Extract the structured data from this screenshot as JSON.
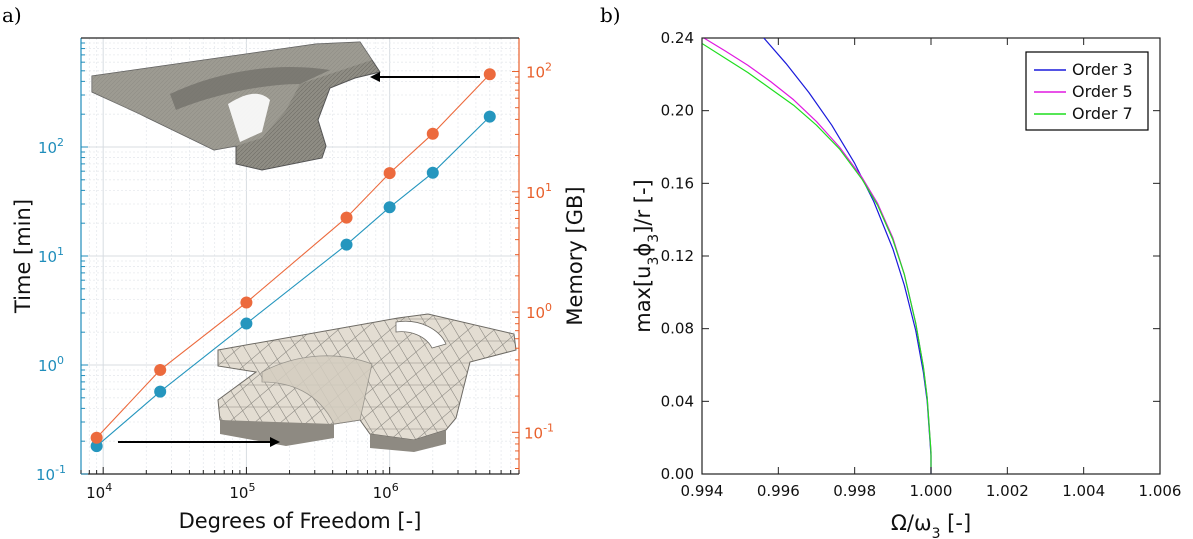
{
  "panels": {
    "a_label": "a)",
    "b_label": "b)"
  },
  "chart_data": [
    {
      "type": "scatter",
      "panel": "a",
      "xlabel": "Degrees of Freedom [-]",
      "ylabel_left": "Time [min]",
      "ylabel_right": "Memory [GB]",
      "xscale": "log",
      "yscale": "log",
      "xlim": [
        7000,
        8000000
      ],
      "ylim_left": [
        0.1,
        1000
      ],
      "ylim_right": [
        0.045,
        190
      ],
      "grid": true,
      "x_ticks": [
        {
          "value": 10000,
          "base": "10",
          "exp": "4"
        },
        {
          "value": 100000,
          "base": "10",
          "exp": "5"
        },
        {
          "value": 1000000,
          "base": "10",
          "exp": "6"
        }
      ],
      "y_ticks_left": [
        {
          "value": 0.1,
          "base": "10",
          "exp": "-1"
        },
        {
          "value": 1,
          "base": "10",
          "exp": "0"
        },
        {
          "value": 10,
          "base": "10",
          "exp": "1"
        },
        {
          "value": 100,
          "base": "10",
          "exp": "2"
        }
      ],
      "y_ticks_right": [
        {
          "value": 0.1,
          "base": "10",
          "exp": "-1"
        },
        {
          "value": 1,
          "base": "10",
          "exp": "0"
        },
        {
          "value": 10,
          "base": "10",
          "exp": "1"
        },
        {
          "value": 100,
          "base": "10",
          "exp": "2"
        }
      ],
      "colors": {
        "time": "#2596be",
        "memory": "#ec6a3d"
      },
      "series": [
        {
          "axis": "left",
          "x": [
            9000,
            25000,
            100000,
            500000,
            1000000,
            2000000,
            5000000
          ],
          "y": [
            0.18,
            0.57,
            2.4,
            12.7,
            28,
            58,
            190
          ]
        },
        {
          "axis": "right",
          "x": [
            9000,
            25000,
            100000,
            500000,
            1000000,
            2000000,
            5000000
          ],
          "y": [
            0.09,
            0.33,
            1.2,
            6.1,
            14.3,
            30.4,
            95
          ]
        }
      ]
    },
    {
      "type": "line",
      "panel": "b",
      "xlabel": "Ω/ω",
      "xlabel_sub": "3",
      "xlabel_tail": " [-]",
      "ylabel_pre": "max[u",
      "ylabel_sub1": "3",
      "ylabel_mid": "ϕ",
      "ylabel_sub2": "3",
      "ylabel_post": "]/r [-]",
      "xlim": [
        0.994,
        1.006
      ],
      "ylim": [
        0,
        0.24
      ],
      "x_ticks": [
        "0.994",
        "0.996",
        "0.998",
        "1.000",
        "1.002",
        "1.004",
        "1.006"
      ],
      "y_ticks": [
        "0.00",
        "0.04",
        "0.08",
        "0.12",
        "0.16",
        "0.20",
        "0.24"
      ],
      "legend_position": "top-right",
      "series": [
        {
          "name": "Order 3",
          "color": "#1a1adb",
          "x": [
            0.99562,
            0.9962,
            0.9968,
            0.9974,
            0.998,
            0.9985,
            0.999,
            0.9993,
            0.9996,
            0.9998,
            0.9999,
            1.0,
            1.0
          ],
          "y": [
            0.24,
            0.226,
            0.21,
            0.192,
            0.171,
            0.15,
            0.124,
            0.104,
            0.079,
            0.056,
            0.04,
            0.01,
            0.0
          ]
        },
        {
          "name": "Order 5",
          "color": "#e019e0",
          "x": [
            0.99405,
            0.9946,
            0.9952,
            0.9958,
            0.9964,
            0.997,
            0.9976,
            0.9982,
            0.9986,
            0.999,
            0.9993,
            0.9996,
            0.9998,
            0.9999,
            1.0,
            1.0
          ],
          "y": [
            0.24,
            0.233,
            0.225,
            0.216,
            0.206,
            0.194,
            0.18,
            0.163,
            0.149,
            0.13,
            0.11,
            0.083,
            0.059,
            0.042,
            0.012,
            0.0
          ]
        },
        {
          "name": "Order 7",
          "color": "#1fdd1f",
          "x": [
            0.994,
            0.9946,
            0.9952,
            0.9958,
            0.9964,
            0.997,
            0.9976,
            0.9982,
            0.9986,
            0.999,
            0.9993,
            0.9996,
            0.9998,
            0.9999,
            1.0,
            1.0
          ],
          "y": [
            0.237,
            0.229,
            0.221,
            0.212,
            0.203,
            0.192,
            0.179,
            0.162,
            0.148,
            0.129,
            0.11,
            0.083,
            0.059,
            0.042,
            0.012,
            0.0
          ]
        }
      ]
    }
  ]
}
